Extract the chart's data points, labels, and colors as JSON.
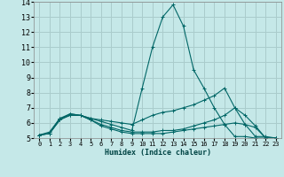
{
  "xlabel": "Humidex (Indice chaleur)",
  "xlim": [
    -0.5,
    23.5
  ],
  "ylim": [
    5,
    14
  ],
  "yticks": [
    5,
    6,
    7,
    8,
    9,
    10,
    11,
    12,
    13,
    14
  ],
  "xticks": [
    0,
    1,
    2,
    3,
    4,
    5,
    6,
    7,
    8,
    9,
    10,
    11,
    12,
    13,
    14,
    15,
    16,
    17,
    18,
    19,
    20,
    21,
    22,
    23
  ],
  "bg_color": "#c5e8e8",
  "grid_color": "#aacccc",
  "line_color": "#006666",
  "lines": [
    {
      "x": [
        0,
        1,
        2,
        3,
        4,
        5,
        6,
        7,
        8,
        9,
        10,
        11,
        12,
        13,
        14,
        15,
        16,
        17,
        18,
        19,
        20,
        21,
        22,
        23
      ],
      "y": [
        5.2,
        5.4,
        6.3,
        6.6,
        6.5,
        6.3,
        6.1,
        5.9,
        5.7,
        5.5,
        8.3,
        11.0,
        13.0,
        13.8,
        12.4,
        9.5,
        8.3,
        7.0,
        5.9,
        5.1,
        5.1,
        5.0,
        5.0,
        5.0
      ]
    },
    {
      "x": [
        0,
        1,
        2,
        3,
        4,
        5,
        6,
        7,
        8,
        9,
        10,
        11,
        12,
        13,
        14,
        15,
        16,
        17,
        18,
        19,
        20,
        21,
        22,
        23
      ],
      "y": [
        5.2,
        5.3,
        6.3,
        6.5,
        6.5,
        6.3,
        6.2,
        6.1,
        6.0,
        5.9,
        6.2,
        6.5,
        6.7,
        6.8,
        7.0,
        7.2,
        7.5,
        7.8,
        8.3,
        7.0,
        5.9,
        5.1,
        5.1,
        5.0
      ]
    },
    {
      "x": [
        0,
        1,
        2,
        3,
        4,
        5,
        6,
        7,
        8,
        9,
        10,
        11,
        12,
        13,
        14,
        15,
        16,
        17,
        18,
        19,
        20,
        21,
        22,
        23
      ],
      "y": [
        5.2,
        5.3,
        6.2,
        6.6,
        6.5,
        6.2,
        5.9,
        5.7,
        5.5,
        5.4,
        5.4,
        5.4,
        5.5,
        5.5,
        5.6,
        5.8,
        6.0,
        6.2,
        6.5,
        7.0,
        6.5,
        5.8,
        5.0,
        5.0
      ]
    },
    {
      "x": [
        0,
        1,
        2,
        3,
        4,
        5,
        6,
        7,
        8,
        9,
        10,
        11,
        12,
        13,
        14,
        15,
        16,
        17,
        18,
        19,
        20,
        21,
        22,
        23
      ],
      "y": [
        5.2,
        5.3,
        6.2,
        6.5,
        6.5,
        6.2,
        5.8,
        5.6,
        5.4,
        5.3,
        5.3,
        5.3,
        5.3,
        5.4,
        5.5,
        5.6,
        5.7,
        5.8,
        5.9,
        6.0,
        5.9,
        5.7,
        5.0,
        5.0
      ]
    }
  ]
}
